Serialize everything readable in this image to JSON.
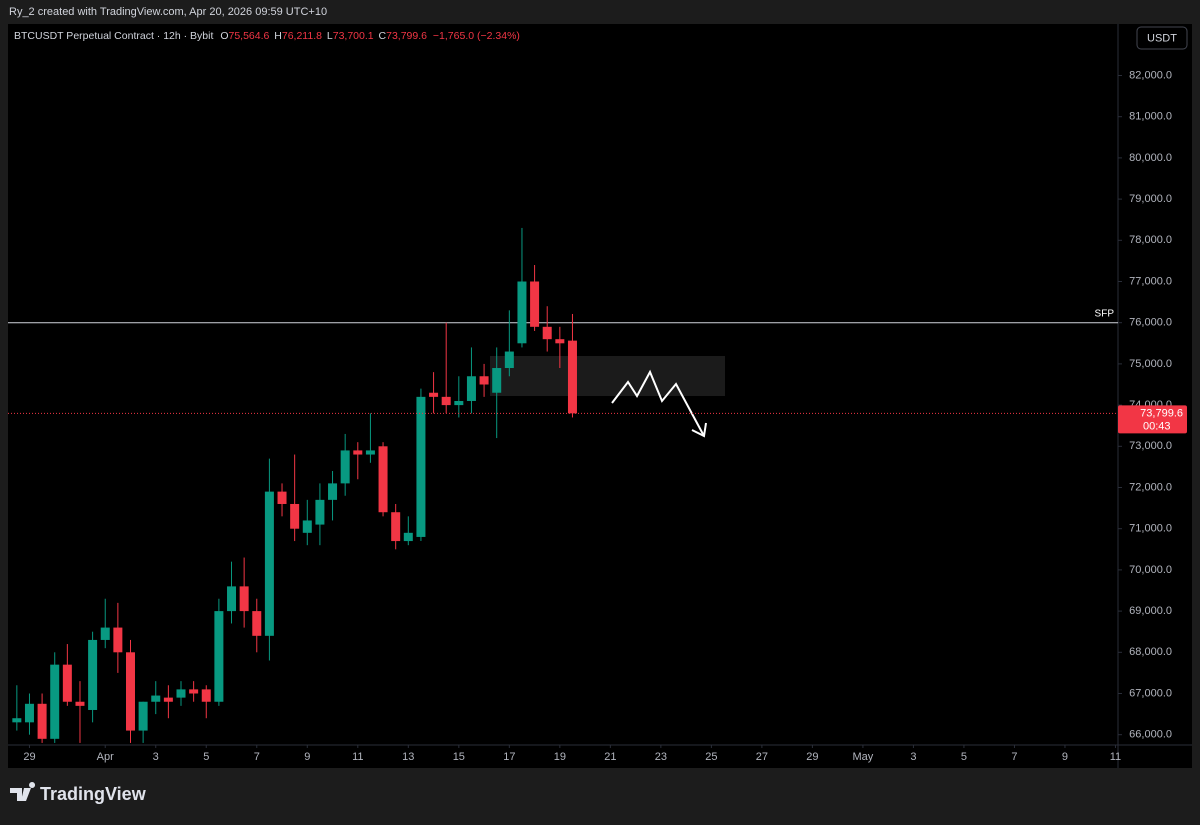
{
  "chart_data": {
    "type": "candlestick",
    "watermark": "Ry_2 created with TradingView.com, Apr 20, 2026 09:59 UTC+10",
    "header": {
      "symbol": "BTCUSDT Perpetual Contract · 12h · Bybit",
      "o": "O",
      "open": "75,564.6",
      "h": "H",
      "high": "76,211.8",
      "l": "L",
      "low": "73,700.1",
      "c": "C",
      "close": "73,799.6",
      "change": "−1,765.0 (−2.34%)"
    },
    "currency": "USDT",
    "brand": "TradingView",
    "up_color": "#089981",
    "down_color": "#f23645",
    "grid": false,
    "x": [
      -0.5,
      0,
      0.5,
      1,
      1.5,
      2,
      2.5,
      3,
      3.5,
      4,
      4.5,
      5,
      5.5,
      6,
      6.5,
      7,
      7.5,
      8,
      8.5,
      9,
      9.5,
      10,
      10.5,
      11,
      11.5,
      12,
      12.5,
      13,
      13.5,
      14,
      14.5,
      15,
      15.5,
      16,
      16.5,
      17,
      17.5,
      18,
      18.5,
      19,
      19.5,
      20,
      20.5,
      21,
      21.5
    ],
    "open": [
      66300,
      66300,
      66750,
      65900,
      67700,
      66800,
      66600,
      68300,
      68600,
      68000,
      66100,
      66800,
      66900,
      66900,
      67100,
      67100,
      66800,
      69000,
      69600,
      69000,
      68400,
      71900,
      71600,
      70900,
      71100,
      71700,
      72100,
      72900,
      72800,
      73000,
      71400,
      70700,
      70800,
      74300,
      74200,
      74000,
      74100,
      74700,
      74300,
      74900,
      75500,
      77000,
      75900,
      75600,
      75564.6
    ],
    "high": [
      67200,
      67000,
      67000,
      68000,
      68200,
      67300,
      68500,
      69300,
      69200,
      68300,
      66800,
      67300,
      67200,
      67300,
      67300,
      67200,
      69300,
      70200,
      70300,
      69300,
      72700,
      72100,
      72800,
      71700,
      72100,
      72400,
      73300,
      73100,
      73800,
      73100,
      71600,
      71300,
      74400,
      74800,
      76000,
      74700,
      75400,
      75000,
      75400,
      76300,
      78300,
      77400,
      76400,
      75900,
      76211.8
    ],
    "low": [
      66100,
      66000,
      65800,
      65800,
      66700,
      65800,
      66300,
      68100,
      67500,
      65800,
      65800,
      66500,
      66400,
      66700,
      66800,
      66400,
      66700,
      68700,
      68600,
      68000,
      67800,
      71300,
      70700,
      70600,
      70600,
      71200,
      71800,
      72200,
      72600,
      71300,
      70500,
      70600,
      70700,
      73800,
      73800,
      73700,
      73800,
      74200,
      73200,
      74700,
      75400,
      75800,
      75300,
      74900,
      73700.1
    ],
    "close": [
      66400,
      66750,
      65900,
      67700,
      66800,
      66700,
      68300,
      68600,
      68000,
      66100,
      66800,
      66950,
      66800,
      67100,
      67000,
      66800,
      69000,
      69600,
      69000,
      68400,
      71900,
      71600,
      71000,
      71200,
      71700,
      72100,
      72900,
      72800,
      72900,
      71400,
      70700,
      70900,
      74200,
      74200,
      74000,
      74100,
      74700,
      74500,
      74900,
      75300,
      77000,
      75900,
      75600,
      75500,
      73799.6
    ],
    "ylim": [
      65750,
      83250
    ],
    "yticks": [
      {
        "value": 66000,
        "label": "66,000.0"
      },
      {
        "value": 67000,
        "label": "67,000.0"
      },
      {
        "value": 68000,
        "label": "68,000.0"
      },
      {
        "value": 69000,
        "label": "69,000.0"
      },
      {
        "value": 70000,
        "label": "70,000.0"
      },
      {
        "value": 71000,
        "label": "71,000.0"
      },
      {
        "value": 72000,
        "label": "72,000.0"
      },
      {
        "value": 73000,
        "label": "73,000.0"
      },
      {
        "value": 74000,
        "label": "74,000.0"
      },
      {
        "value": 75000,
        "label": "75,000.0"
      },
      {
        "value": 76000,
        "label": "76,000.0"
      },
      {
        "value": 77000,
        "label": "77,000.0"
      },
      {
        "value": 78000,
        "label": "78,000.0"
      },
      {
        "value": 79000,
        "label": "79,000.0"
      },
      {
        "value": 80000,
        "label": "80,000.0"
      },
      {
        "value": 81000,
        "label": "81,000.0"
      },
      {
        "value": 82000,
        "label": "82,000.0"
      }
    ],
    "xlim": [
      -0.85,
      43.1
    ],
    "xticks": [
      {
        "value": 0,
        "label": "29"
      },
      {
        "value": 3,
        "label": "Apr"
      },
      {
        "value": 5,
        "label": "3"
      },
      {
        "value": 7,
        "label": "5"
      },
      {
        "value": 9,
        "label": "7"
      },
      {
        "value": 11,
        "label": "9"
      },
      {
        "value": 13,
        "label": "11"
      },
      {
        "value": 15,
        "label": "13"
      },
      {
        "value": 17,
        "label": "15"
      },
      {
        "value": 19,
        "label": "17"
      },
      {
        "value": 21,
        "label": "19"
      },
      {
        "value": 23,
        "label": "21"
      },
      {
        "value": 25,
        "label": "23"
      },
      {
        "value": 27,
        "label": "25"
      },
      {
        "value": 29,
        "label": "27"
      },
      {
        "value": 31,
        "label": "29"
      },
      {
        "value": 33,
        "label": "May"
      },
      {
        "value": 35,
        "label": "3"
      },
      {
        "value": 37,
        "label": "5"
      },
      {
        "value": 39,
        "label": "7"
      },
      {
        "value": 41,
        "label": "9"
      },
      {
        "value": 43,
        "label": "11"
      }
    ],
    "annotations": [
      {
        "text": "SFP",
        "value": 76000
      }
    ],
    "last_price": {
      "label": "73,799.6",
      "countdown": "00:43"
    }
  }
}
